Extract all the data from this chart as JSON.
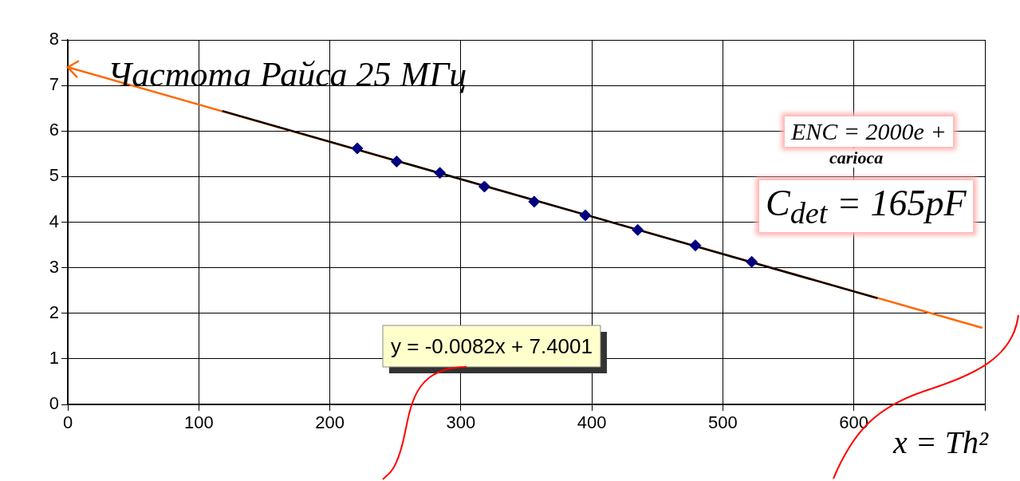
{
  "chart_data": {
    "type": "scatter",
    "xlabel": "x = Th²",
    "xlim": [
      0,
      700
    ],
    "xticks": [
      0,
      100,
      200,
      300,
      400,
      500,
      600,
      {
        "value": 700,
        "label": null
      }
    ],
    "ylim": [
      0,
      8
    ],
    "yticks": [
      0,
      1,
      2,
      3,
      4,
      5,
      6,
      7,
      8
    ],
    "grid": true,
    "legend": false,
    "series": [
      {
        "type": "scatter",
        "color": "#000080",
        "marker": "diamond",
        "x": [
          221,
          251,
          284,
          318,
          356,
          395,
          435,
          479,
          522
        ],
        "values": [
          5.62,
          5.33,
          5.08,
          4.78,
          4.45,
          4.15,
          3.83,
          3.49,
          3.13
        ]
      },
      {
        "type": "line",
        "color": "#000000",
        "marker": "none",
        "line_style": "solid",
        "x": [
          118,
          618
        ],
        "values": [
          6.44,
          2.33
        ]
      },
      {
        "type": "line",
        "color": "#ff6600",
        "marker": "none",
        "line_style": "solid",
        "x": [
          0,
          698
        ],
        "values": [
          7.4,
          1.68
        ]
      }
    ],
    "annotations": [
      "Частота Райса 25 МГц",
      "y = -0.0082x + 7.4001",
      "ENC = 2000e +",
      "carioca",
      "C$_{det}$ = 165pF"
    ]
  }
}
